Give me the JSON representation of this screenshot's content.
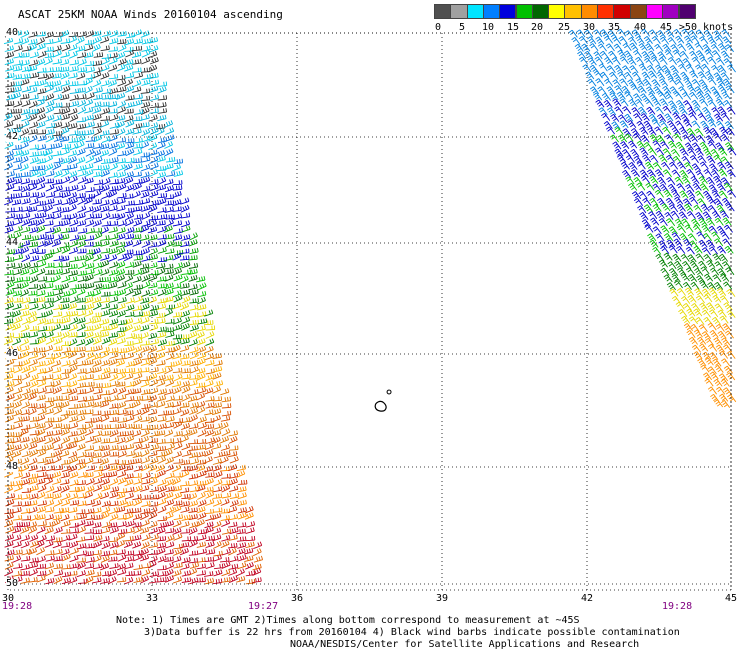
{
  "title": "ASCAT 25KM NOAA Winds 20160104 ascending",
  "colorbar": {
    "labels": [
      "0",
      "5",
      "10",
      "15",
      "20",
      "25",
      "30",
      "35",
      "40",
      "45",
      ">50 knots"
    ],
    "colors": [
      "#505050",
      "#a0a0a0",
      "#00e5ff",
      "#007fff",
      "#0000dd",
      "#00c000",
      "#006600",
      "#ffff00",
      "#ffc000",
      "#ff8c00",
      "#ff3000",
      "#d00000",
      "#8b4513",
      "#ff00ff",
      "#a000c0",
      "#500070"
    ]
  },
  "lat_labels": [
    "40",
    "42",
    "44",
    "46",
    "48",
    "50"
  ],
  "lon_labels": [
    "30",
    "33",
    "36",
    "39",
    "42",
    "45"
  ],
  "time_labels": {
    "left_start": "19:28",
    "left_end": "19:27",
    "right": "19:28"
  },
  "notes": [
    "Note: 1) Times are GMT 2)Times along bottom correspond to measurement at ~45S",
    "3)Data buffer is 22 hrs from 20160104 4) Black wind barbs indicate possible contamination",
    "NOAA/NESDIS/Center for Satellite Applications and Research"
  ]
}
